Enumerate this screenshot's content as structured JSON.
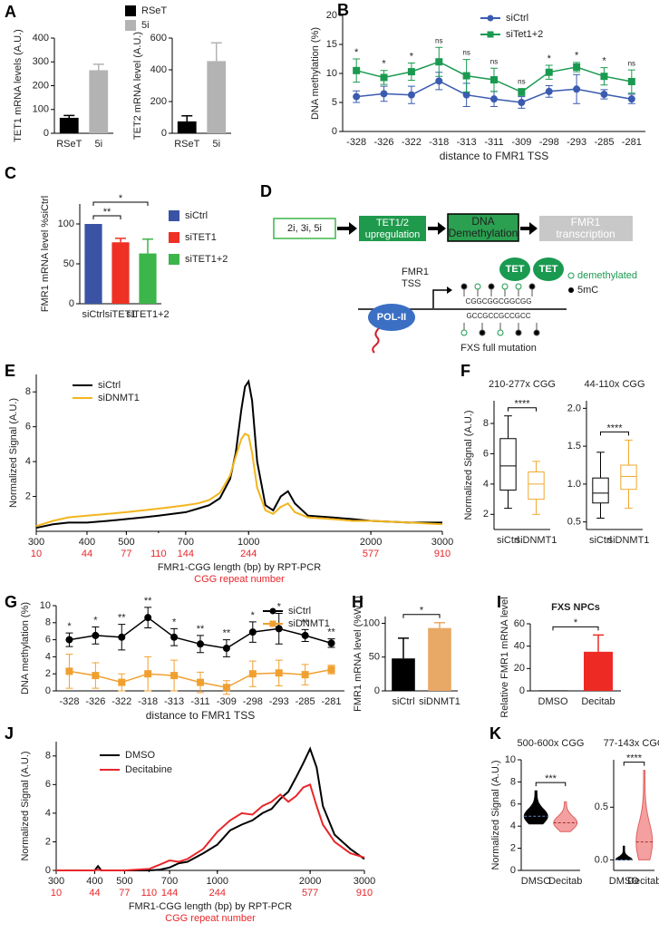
{
  "chart_data": [
    {
      "panel": "A",
      "type": "bar",
      "ylabel": "TET1 mRNA levels (A.U.)",
      "categories": [
        "RSeT",
        "5i"
      ],
      "values": [
        65,
        265
      ],
      "errors": [
        10,
        25
      ],
      "colors": [
        "#000000",
        "#b3b3b3"
      ],
      "ylim": [
        0,
        400
      ],
      "yticks": [
        0,
        100,
        200,
        300,
        400
      ],
      "legend": [
        {
          "name": "RSeT",
          "color": "#000000"
        },
        {
          "name": "5i",
          "color": "#b3b3b3"
        }
      ]
    },
    {
      "type": "bar",
      "ylabel": "TET2 mRNA level (A.U.)",
      "categories": [
        "RSeT",
        "5i"
      ],
      "values": [
        75,
        455
      ],
      "errors": [
        35,
        115
      ],
      "colors": [
        "#000000",
        "#b3b3b3"
      ],
      "ylim": [
        0,
        600
      ],
      "yticks": [
        0,
        200,
        400,
        600
      ]
    },
    {
      "panel": "B",
      "type": "line",
      "ylabel": "DNA methylation (%)",
      "xlabel": "distance to FMR1 TSS",
      "categories": [
        "-328",
        "-326",
        "-322",
        "-318",
        "-313",
        "-311",
        "-309",
        "-298",
        "-293",
        "-285",
        "-281"
      ],
      "series": [
        {
          "name": "siCtrl",
          "color": "#3a5bb0",
          "marker": "circle",
          "values": [
            6,
            6.5,
            6.3,
            8.7,
            6.3,
            5.6,
            5,
            6.9,
            7.3,
            6.4,
            5.6
          ],
          "errors": [
            1,
            1.3,
            1.5,
            1.5,
            2,
            1.3,
            1,
            1,
            2.5,
            0.8,
            0.8
          ]
        },
        {
          "name": "siTet1+2",
          "color": "#1a9a50",
          "marker": "square",
          "values": [
            10.5,
            9.3,
            10.3,
            12,
            9.6,
            8.9,
            6.8,
            10.2,
            11.1,
            9.5,
            8.6
          ],
          "errors": [
            2,
            1.2,
            1.5,
            2.5,
            2.8,
            2,
            0.6,
            1.2,
            0.8,
            1.5,
            2
          ]
        }
      ],
      "significance": [
        "*",
        "*",
        "*",
        "ns",
        "ns",
        "ns",
        "ns",
        "*",
        "*",
        "*",
        "ns"
      ],
      "ylim": [
        0,
        20
      ],
      "yticks": [
        0,
        5,
        10,
        15,
        20
      ]
    },
    {
      "panel": "C",
      "type": "bar",
      "ylabel": "FMR1 mRNA level %siCtrl",
      "categories": [
        "siCtrl",
        "siTET1",
        "siTET1+2"
      ],
      "values": [
        100,
        77,
        63
      ],
      "errors": [
        0,
        5,
        18
      ],
      "colors": [
        "#3a53a4",
        "#ee3124",
        "#3cb54a"
      ],
      "ylim": [
        0,
        125
      ],
      "yticks": [
        0,
        50,
        100
      ],
      "significance": [
        null,
        "**",
        "*"
      ],
      "legend": [
        {
          "name": "siCtrl",
          "color": "#3a53a4"
        },
        {
          "name": "siTET1",
          "color": "#ee3124"
        },
        {
          "name": "siTET1+2",
          "color": "#3cb54a"
        }
      ]
    },
    {
      "panel": "E",
      "type": "line",
      "xscale": "log",
      "ylabel": "Normalized Signal (A.U.)",
      "xlabel": "FMR1-CGG length (bp) by RPT-PCR",
      "x2label": "CGG repeat number",
      "x2color": "#e8262a",
      "x": [
        300,
        330,
        360,
        400,
        450,
        500,
        550,
        600,
        650,
        700,
        750,
        800,
        850,
        900,
        930,
        960,
        980,
        1000,
        1020,
        1050,
        1100,
        1150,
        1200,
        1250,
        1300,
        1400,
        1600,
        1800,
        2000,
        2500,
        3000
      ],
      "series": [
        {
          "name": "siCtrl",
          "color": "#000000",
          "values": [
            0.2,
            0.4,
            0.5,
            0.5,
            0.6,
            0.7,
            0.8,
            0.9,
            1.0,
            1.1,
            1.3,
            1.5,
            1.9,
            3.0,
            4.5,
            7.0,
            8.3,
            8.6,
            7.5,
            4.0,
            1.5,
            1.2,
            2.0,
            2.3,
            1.6,
            0.9,
            0.8,
            0.7,
            0.6,
            0.5,
            0.5
          ]
        },
        {
          "name": "siDNMT1",
          "color": "#f2b51c",
          "values": [
            0.3,
            0.6,
            0.8,
            0.9,
            1.0,
            1.1,
            1.2,
            1.3,
            1.4,
            1.5,
            1.6,
            1.8,
            2.2,
            3.2,
            4.3,
            5.3,
            5.6,
            5.5,
            4.5,
            2.5,
            1.2,
            1.0,
            1.4,
            1.6,
            1.1,
            0.8,
            0.7,
            0.6,
            0.6,
            0.5,
            0.4
          ]
        }
      ],
      "xlim": [
        300,
        3000
      ],
      "xticks": [
        300,
        400,
        500,
        700,
        1000,
        2000,
        3000
      ],
      "x2ticks": [
        {
          "value": 300,
          "label": "10"
        },
        {
          "value": 400,
          "label": "44"
        },
        {
          "value": 500,
          "label": "77"
        },
        {
          "value": 600,
          "label": "110"
        },
        {
          "value": 700,
          "label": "144"
        },
        {
          "value": 1000,
          "label": "244"
        },
        {
          "value": 2000,
          "label": "577"
        },
        {
          "value": 3000,
          "label": "910"
        }
      ],
      "ylim": [
        0,
        9
      ],
      "yticks": [
        2,
        4,
        6,
        8
      ]
    },
    {
      "panel": "F",
      "type": "box",
      "title": "210-277x CGG",
      "ylabel": "Normalized Signal (A.U.)",
      "categories": [
        "siCtrl",
        "siDNMT1"
      ],
      "colors": [
        "#000000",
        "#f0a830"
      ],
      "boxes": [
        {
          "min": 2.4,
          "q1": 3.6,
          "median": 5.2,
          "q3": 7,
          "max": 8.5
        },
        {
          "min": 2,
          "q1": 3,
          "median": 4,
          "q3": 4.8,
          "max": 5.5
        }
      ],
      "significance": [
        null,
        "****"
      ],
      "ylim": [
        1,
        9.5
      ],
      "yticks": [
        2,
        4,
        6,
        8
      ]
    },
    {
      "type": "box",
      "title": "44-110x CGG",
      "categories": [
        "siCtrl",
        "siDNMT1"
      ],
      "colors": [
        "#000000",
        "#f0a830"
      ],
      "boxes": [
        {
          "min": 0.55,
          "q1": 0.75,
          "median": 0.88,
          "q3": 1.08,
          "max": 1.42
        },
        {
          "min": 0.68,
          "q1": 0.93,
          "median": 1.1,
          "q3": 1.25,
          "max": 1.58
        }
      ],
      "significance": [
        null,
        "****"
      ],
      "ylim": [
        0.4,
        2.1
      ],
      "yticks": [
        {
          "value": 0.5,
          "label": "0.5"
        },
        {
          "value": 1,
          "label": "1.0"
        },
        {
          "value": 1.5,
          "label": "1.5"
        },
        {
          "value": 2,
          "label": "2.0"
        }
      ]
    },
    {
      "panel": "G",
      "type": "line",
      "ylabel": "DNA methylation (%)",
      "xlabel": "distance to FMR1 TSS",
      "categories": [
        "-328",
        "-326",
        "-322",
        "-318",
        "-313",
        "-311",
        "-309",
        "-298",
        "-293",
        "-285",
        "-281"
      ],
      "series": [
        {
          "name": "siCtrl",
          "color": "#000000",
          "marker": "circle",
          "values": [
            6,
            6.5,
            6.3,
            8.6,
            6.3,
            5.5,
            5,
            6.9,
            7.3,
            6.5,
            5.6
          ],
          "errors": [
            0.8,
            1,
            1.5,
            1.2,
            1,
            1,
            1,
            1.2,
            1.8,
            0.7,
            0.5
          ]
        },
        {
          "name": "siDNMT1",
          "color": "#f0a030",
          "marker": "square",
          "values": [
            2.3,
            1.8,
            1,
            2,
            1.8,
            1,
            0.4,
            2,
            2.1,
            1.9,
            2.5
          ],
          "errors": [
            2,
            1.5,
            1,
            2,
            1.8,
            1.2,
            0.8,
            1.5,
            1.5,
            1.2,
            0.5
          ]
        }
      ],
      "significance": [
        "*",
        "*",
        "**",
        "**",
        "*",
        "**",
        "**",
        "*",
        "*",
        "**",
        "**"
      ],
      "ylim": [
        0,
        10
      ],
      "yticks": [
        0,
        2,
        4,
        6,
        8,
        10
      ]
    },
    {
      "panel": "H",
      "type": "bar",
      "ylabel": "FMR1 mRNA level (%WT)",
      "categories": [
        "siCtrl",
        "siDNMT1"
      ],
      "values": [
        48,
        93
      ],
      "errors": [
        30,
        8
      ],
      "colors": [
        "#000000",
        "#e8a866"
      ],
      "ylim": [
        0,
        110
      ],
      "yticks": [
        0,
        50,
        100
      ],
      "significance": [
        null,
        "*"
      ]
    },
    {
      "panel": "I",
      "type": "bar",
      "title": "FXS NPCs",
      "ylabel": "Relative FMR1 mRNA level",
      "categories": [
        "DMSO",
        "Decitab"
      ],
      "values": [
        0.5,
        35
      ],
      "errors": [
        0,
        15
      ],
      "colors": [
        "#000000",
        "#ee2a24"
      ],
      "ylim": [
        0,
        60
      ],
      "yticks": [
        0,
        20,
        40,
        60
      ],
      "significance": [
        null,
        "*"
      ]
    },
    {
      "panel": "J",
      "type": "line",
      "xscale": "log",
      "ylabel": "Normalized Signal (A.U.)",
      "xlabel": "FMR1-CGG length (bp) by RPT-PCR",
      "x2label": "CGG repeat number",
      "x2color": "#e8262a",
      "x": [
        300,
        400,
        410,
        420,
        500,
        600,
        650,
        700,
        750,
        800,
        900,
        1000,
        1100,
        1200,
        1300,
        1400,
        1500,
        1600,
        1700,
        1800,
        1900,
        2000,
        2100,
        2200,
        2400,
        2700,
        3000
      ],
      "series": [
        {
          "name": "DMSO",
          "color": "#000000",
          "values": [
            0,
            0,
            0.3,
            0,
            0,
            0,
            0.05,
            0.2,
            0.5,
            0.6,
            1.2,
            1.8,
            2.8,
            3.2,
            3.5,
            4.0,
            4.3,
            5.0,
            5.5,
            6.5,
            7.5,
            8.5,
            7.2,
            4.5,
            2.5,
            1.5,
            0.8
          ]
        },
        {
          "name": "Decitabine",
          "color": "#e8262a",
          "values": [
            0,
            0,
            0.05,
            0,
            0,
            0.1,
            0.4,
            0.7,
            0.6,
            0.8,
            1.5,
            2.7,
            3.5,
            4.0,
            3.9,
            4.5,
            4.8,
            5.3,
            4.8,
            5.2,
            5.8,
            6.0,
            4.5,
            3.2,
            2.0,
            1.2,
            0.9
          ]
        }
      ],
      "xlim": [
        300,
        3000
      ],
      "xticks": [
        300,
        400,
        500,
        700,
        1000,
        2000,
        3000
      ],
      "x2ticks": [
        {
          "value": 300,
          "label": "10"
        },
        {
          "value": 400,
          "label": "44"
        },
        {
          "value": 500,
          "label": "77"
        },
        {
          "value": 600,
          "label": "110"
        },
        {
          "value": 700,
          "label": "144"
        },
        {
          "value": 1000,
          "label": "244"
        },
        {
          "value": 2000,
          "label": "577"
        },
        {
          "value": 3000,
          "label": "910"
        }
      ],
      "ylim": [
        0,
        9
      ],
      "yticks": [
        0,
        2,
        4,
        6,
        8
      ]
    },
    {
      "panel": "K",
      "type": "violin",
      "title": "500-600x CGG",
      "ylabel": "Normalized Signal (A.U.)",
      "categories": [
        "DMSO",
        "Decitab"
      ],
      "colors": [
        "#000000",
        "#f4a0a0"
      ],
      "violins": [
        {
          "min": 4.2,
          "median": 4.9,
          "max": 7.2
        },
        {
          "min": 3.5,
          "median": 4.3,
          "max": 6.2
        }
      ],
      "significance": [
        null,
        "***"
      ],
      "ylim": [
        0,
        10
      ],
      "yticks": [
        0,
        2,
        4,
        6,
        8,
        10
      ]
    },
    {
      "type": "violin",
      "title": "77-143x CGG",
      "categories": [
        "DMSO",
        "Decitab"
      ],
      "colors": [
        "#000000",
        "#f4a0a0"
      ],
      "violins": [
        {
          "min": 0,
          "median": 0,
          "max": 0.13
        },
        {
          "min": 0,
          "median": 0.17,
          "max": 0.85
        }
      ],
      "significance": [
        null,
        "****"
      ],
      "ylim": [
        -0.1,
        0.95
      ],
      "yticks": [
        {
          "value": 0,
          "label": "0.0"
        },
        {
          "value": 0.5,
          "label": "0.5"
        }
      ]
    }
  ],
  "diagram": {
    "panel": "D",
    "steps": [
      [
        "2i, 3i, 5i"
      ],
      [
        "TET1/2",
        "upregulation"
      ],
      [
        "DNA",
        "Demethylation"
      ],
      [
        "FMR1",
        "transcription"
      ]
    ],
    "tss": [
      "FMR1",
      "TSS"
    ],
    "enzymes": [
      "TET",
      "TET"
    ],
    "polymerase": "POL-II",
    "strands": [
      "CGGCGGCGGCGG",
      "GCCGCCGCCGCC"
    ],
    "legend": [
      "demethylated",
      "5mC"
    ],
    "caption": "FXS full mutation"
  }
}
